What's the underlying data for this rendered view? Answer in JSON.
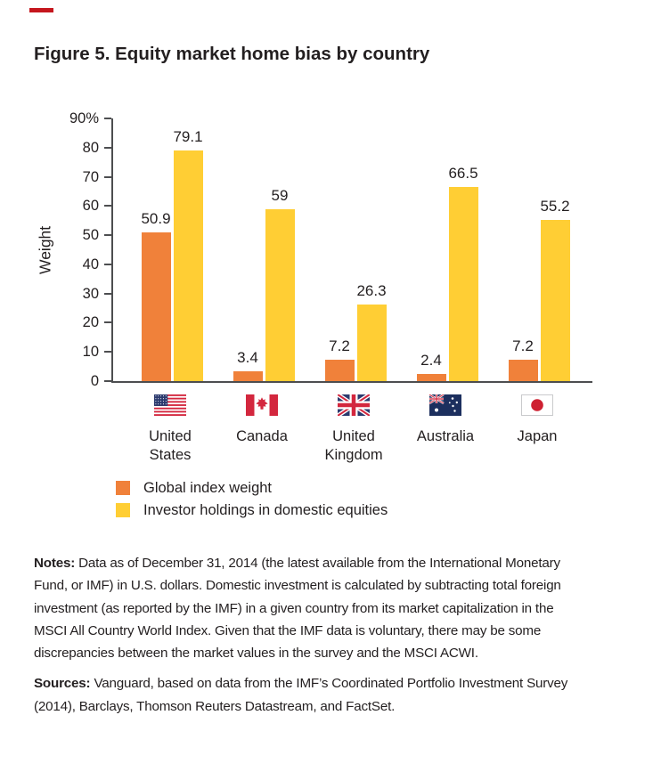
{
  "figure": {
    "title": "Figure 5. Equity market home bias by country"
  },
  "brand": {
    "rule_color": "#C5161D"
  },
  "chart_data": {
    "type": "bar",
    "title": "Figure 5. Equity market home bias by country",
    "xlabel": "",
    "ylabel": "Weight",
    "ylim": [
      0,
      90
    ],
    "y_tick_labels": [
      "0",
      "10",
      "20",
      "30",
      "40",
      "50",
      "60",
      "70",
      "80",
      "90%"
    ],
    "grid": false,
    "legend_position": "below-chart-left",
    "categories": [
      "United States",
      "Canada",
      "United Kingdom",
      "Australia",
      "Japan"
    ],
    "countries": [
      {
        "name": "United States",
        "label_lines": [
          "United",
          "States"
        ],
        "flag": "us",
        "flag_icon": "us-flag-icon"
      },
      {
        "name": "Canada",
        "label_lines": [
          "Canada"
        ],
        "flag": "canada",
        "flag_icon": "canada-flag-icon"
      },
      {
        "name": "United Kingdom",
        "label_lines": [
          "United",
          "Kingdom"
        ],
        "flag": "uk",
        "flag_icon": "uk-flag-icon"
      },
      {
        "name": "Australia",
        "label_lines": [
          "Australia"
        ],
        "flag": "australia",
        "flag_icon": "australia-flag-icon"
      },
      {
        "name": "Japan",
        "label_lines": [
          "Japan"
        ],
        "flag": "japan",
        "flag_icon": "japan-flag-icon"
      }
    ],
    "series": [
      {
        "name": "Global index weight",
        "color": "#F0813A",
        "values": [
          50.9,
          3.4,
          7.2,
          2.4,
          7.2
        ],
        "value_labels": [
          "50.9",
          "3.4",
          "7.2",
          "2.4",
          "7.2"
        ]
      },
      {
        "name": "Investor holdings in domestic equities",
        "color": "#FFCE34",
        "values": [
          79.1,
          59,
          26.3,
          66.5,
          55.2
        ],
        "value_labels": [
          "79.1",
          "59",
          "26.3",
          "66.5",
          "55.2"
        ]
      }
    ]
  },
  "notes": {
    "label": "Notes:",
    "text": "Data as of December 31, 2014 (the latest available from the International Monetary Fund, or IMF) in U.S. dollars. Domestic investment is calculated by subtracting total foreign investment (as reported by the IMF) in a given country from its market capitalization in the MSCI All Country World Index. Given that the IMF data is voluntary, there may be some discrepancies between the market values in the survey and the MSCI ACWI."
  },
  "sources": {
    "label": "Sources:",
    "text": "Vanguard, based on data from the IMF’s Coordinated Portfolio Investment Survey (2014), Barclays, Thomson Reuters Datastream, and FactSet."
  }
}
